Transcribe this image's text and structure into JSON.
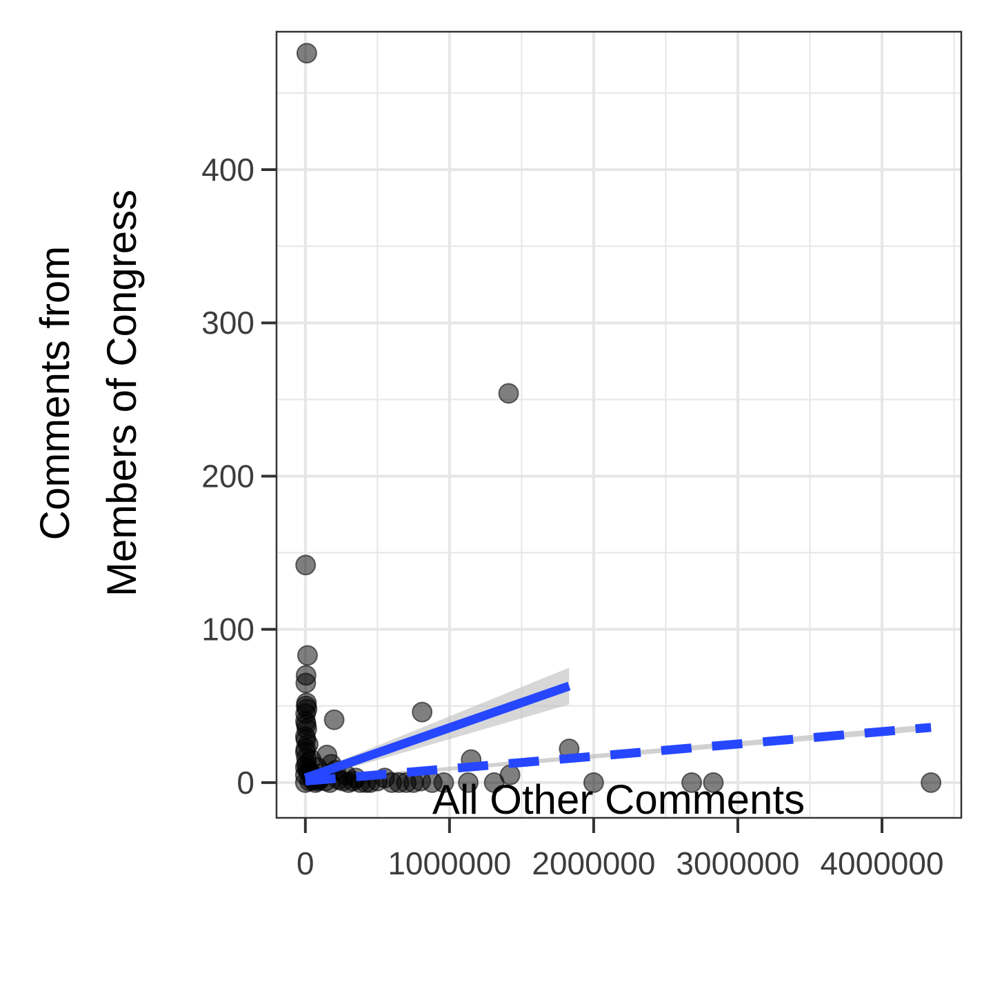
{
  "chart_data": {
    "type": "scatter",
    "xlabel": "All Other Comments",
    "ylabel": [
      "Comments from",
      "Members of Congress"
    ],
    "xlim": [
      -200000,
      4550000
    ],
    "ylim": [
      -23,
      490
    ],
    "x_ticks": [
      0,
      1000000,
      2000000,
      3000000,
      4000000
    ],
    "x_tick_labels": [
      "0",
      "1000000",
      "2000000",
      "3000000",
      "4000000"
    ],
    "y_ticks": [
      0,
      100,
      200,
      300,
      400
    ],
    "y_tick_labels": [
      "0",
      "100",
      "200",
      "300",
      "400"
    ],
    "grid": true,
    "legend": "none",
    "colors": {
      "points": "#000000",
      "fit_line": "#2647ff",
      "ribbon": "#bdbdbd",
      "grid": "#e6e6e6",
      "panel_border": "#333333"
    },
    "points": [
      [
        10000,
        476
      ],
      [
        1410000,
        254
      ],
      [
        2000,
        142
      ],
      [
        15000,
        83
      ],
      [
        5000,
        70
      ],
      [
        3000,
        65
      ],
      [
        200000,
        41
      ],
      [
        810000,
        46
      ],
      [
        1830000,
        22
      ],
      [
        1150000,
        15
      ],
      [
        1420000,
        5
      ],
      [
        1310000,
        0
      ],
      [
        1130000,
        0
      ],
      [
        2000000,
        0
      ],
      [
        2680000,
        0
      ],
      [
        2830000,
        0
      ],
      [
        4340000,
        0
      ],
      [
        960000,
        0
      ],
      [
        880000,
        0
      ],
      [
        700000,
        0
      ],
      [
        600000,
        0
      ],
      [
        500000,
        1
      ],
      [
        420000,
        0
      ],
      [
        350000,
        3
      ],
      [
        280000,
        5
      ],
      [
        210000,
        8
      ],
      [
        180000,
        12
      ],
      [
        150000,
        18
      ],
      [
        120000,
        6
      ],
      [
        100000,
        2
      ],
      [
        80000,
        10
      ],
      [
        60000,
        4
      ],
      [
        40000,
        15
      ],
      [
        20000,
        25
      ],
      [
        10000,
        35
      ],
      [
        5000,
        50
      ],
      [
        2000,
        45
      ],
      [
        1000,
        40
      ],
      [
        0,
        30
      ],
      [
        0,
        20
      ],
      [
        0,
        10
      ],
      [
        0,
        5
      ],
      [
        0,
        0
      ],
      [
        30000,
        1
      ],
      [
        50000,
        2
      ],
      [
        70000,
        0
      ],
      [
        90000,
        3
      ],
      [
        140000,
        1
      ],
      [
        170000,
        0
      ],
      [
        230000,
        2
      ],
      [
        260000,
        1
      ],
      [
        300000,
        0
      ],
      [
        330000,
        1
      ],
      [
        380000,
        0
      ],
      [
        450000,
        0
      ],
      [
        550000,
        3
      ],
      [
        650000,
        0
      ],
      [
        750000,
        0
      ],
      [
        800000,
        1
      ],
      [
        12000,
        48
      ],
      [
        8000,
        52
      ],
      [
        6000,
        38
      ],
      [
        4000,
        28
      ],
      [
        3000,
        22
      ],
      [
        7000,
        16
      ],
      [
        9000,
        12
      ],
      [
        15000,
        9
      ],
      [
        25000,
        7
      ],
      [
        35000,
        6
      ],
      [
        45000,
        5
      ],
      [
        55000,
        4
      ],
      [
        65000,
        3
      ],
      [
        75000,
        2
      ],
      [
        85000,
        1
      ]
    ],
    "fit_solid": {
      "x": [
        0,
        1830000
      ],
      "y": [
        3,
        63
      ],
      "ci_low": [
        1,
        51
      ],
      "ci_high": [
        5,
        75
      ]
    },
    "fit_dashed": {
      "x": [
        0,
        4340000
      ],
      "y": [
        1,
        36
      ],
      "ci_low": [
        0,
        34
      ],
      "ci_high": [
        2,
        38
      ]
    }
  }
}
